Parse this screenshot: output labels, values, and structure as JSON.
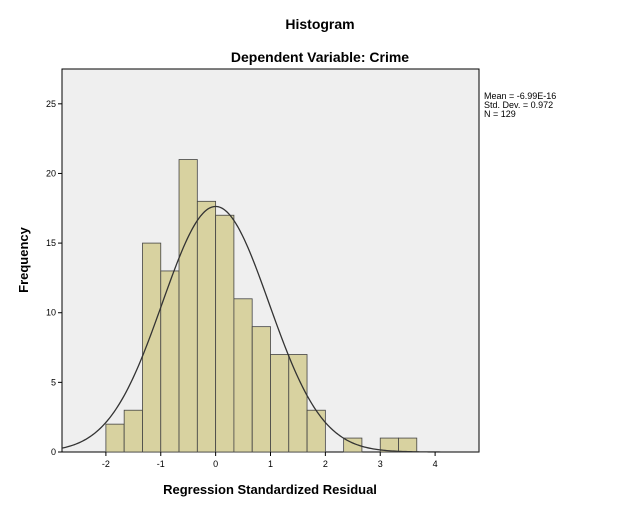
{
  "chart_data": {
    "type": "bar",
    "title": "Histogram",
    "subtitle": "Dependent Variable: Crime",
    "xlabel": "Regression Standardized Residual",
    "ylabel": "Frequency",
    "xlim": [
      -2.8,
      4.8
    ],
    "ylim": [
      0,
      27.5
    ],
    "x_ticks": [
      "-2",
      "-1",
      "0",
      "1",
      "2",
      "3",
      "4"
    ],
    "x_tick_values": [
      -2,
      -1,
      0,
      1,
      2,
      3,
      4
    ],
    "y_ticks": [
      "0",
      "5",
      "10",
      "15",
      "20",
      "25"
    ],
    "y_tick_values": [
      0,
      5,
      10,
      15,
      20,
      25
    ],
    "bin_width": 0.333,
    "bins": [
      {
        "start": -2.0,
        "count": 2
      },
      {
        "start": -1.667,
        "count": 3
      },
      {
        "start": -1.333,
        "count": 15
      },
      {
        "start": -1.0,
        "count": 13
      },
      {
        "start": -0.667,
        "count": 21
      },
      {
        "start": -0.333,
        "count": 18
      },
      {
        "start": 0.0,
        "count": 17
      },
      {
        "start": 0.333,
        "count": 11
      },
      {
        "start": 0.667,
        "count": 9
      },
      {
        "start": 1.0,
        "count": 7
      },
      {
        "start": 1.333,
        "count": 7
      },
      {
        "start": 1.667,
        "count": 3
      },
      {
        "start": 2.0,
        "count": 0
      },
      {
        "start": 2.333,
        "count": 1
      },
      {
        "start": 2.667,
        "count": 0
      },
      {
        "start": 3.0,
        "count": 1
      },
      {
        "start": 3.333,
        "count": 1
      }
    ],
    "normal_curve": {
      "mean": 0,
      "sd": 0.972,
      "n": 129
    },
    "stats_lines": [
      "Mean = -6.99E-16",
      "Std. Dev. = 0.972",
      "N = 129"
    ],
    "grid": false,
    "colors": {
      "bar_fill": "#d8d2a0",
      "bar_stroke": "#444444",
      "plot_bg": "#efefef",
      "curve": "#333333"
    }
  }
}
